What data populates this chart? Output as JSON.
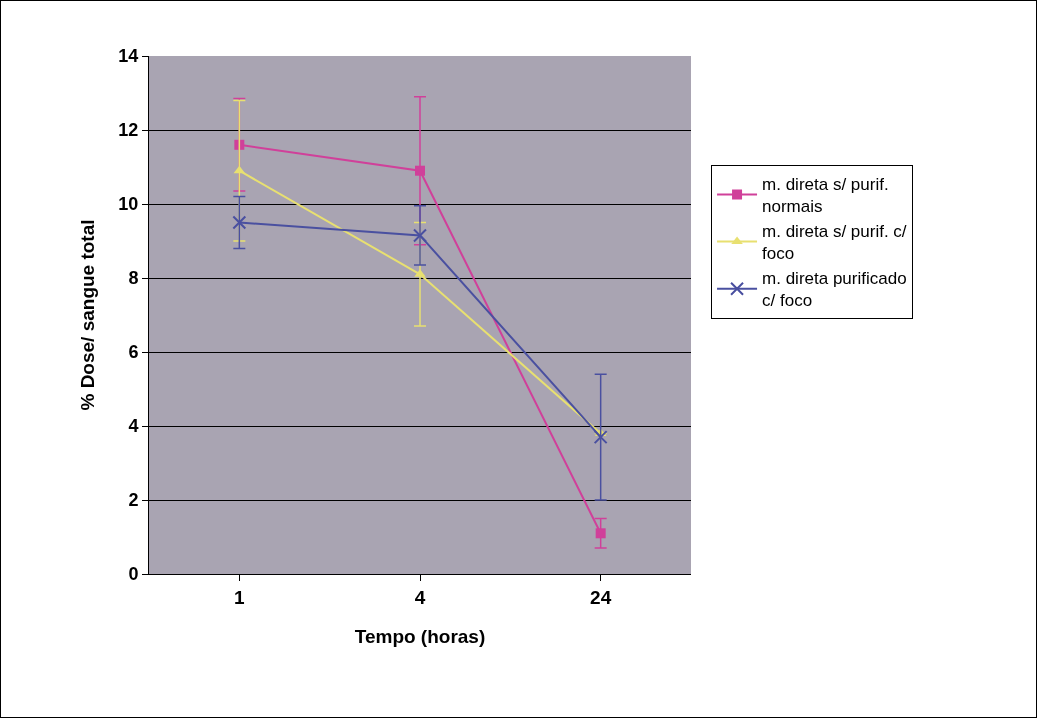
{
  "chart_data": {
    "type": "line",
    "xlabel": "Tempo (horas)",
    "ylabel": "% Dose/ sangue total",
    "categories": [
      "1",
      "4",
      "24"
    ],
    "ylim": [
      0,
      14
    ],
    "yticks": [
      0,
      2,
      4,
      6,
      8,
      10,
      12,
      14
    ],
    "grid": "y",
    "legend": "right",
    "line_style": "solid",
    "series": [
      {
        "name": "m. direta s/ purif. normais",
        "color": "#d0409a",
        "marker": "square",
        "values": [
          11.6,
          10.9,
          1.1
        ],
        "errors": [
          1.25,
          2.0,
          0.4
        ]
      },
      {
        "name": "m. direta s/ purif. c/ foco",
        "color": "#e8e070",
        "marker": "triangle",
        "values": [
          10.9,
          8.1,
          3.8
        ],
        "errors": [
          1.9,
          1.4,
          null
        ]
      },
      {
        "name": "m. direta purificado c/ foco",
        "color": "#4a50a0",
        "marker": "cross",
        "values": [
          9.5,
          9.15,
          3.7
        ],
        "errors": [
          0.7,
          0.8,
          1.7
        ]
      }
    ]
  }
}
